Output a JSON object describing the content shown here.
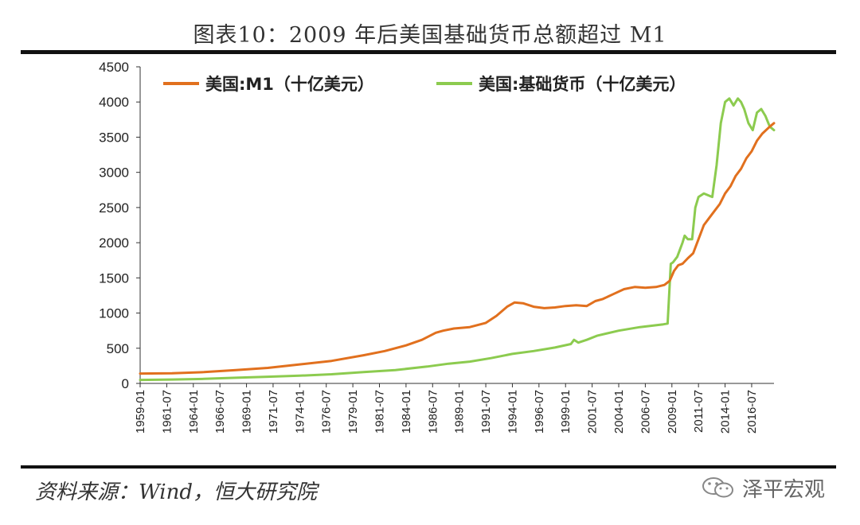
{
  "title": "图表10：2009 年后美国基础货币总额超过 M1",
  "source": "资料来源：Wind，恒大研究院",
  "watermark": {
    "text": "泽平宏观",
    "icon": "wechat-icon"
  },
  "colors": {
    "m1": "#E1701E",
    "base": "#8CCB4F",
    "axis": "#333333"
  },
  "chart_data": {
    "type": "line",
    "title": "图表10：2009 年后美国基础货币总额超过 M1",
    "xlabel": "",
    "ylabel": "",
    "ylim": [
      0,
      4500
    ],
    "xlim": [
      1959.0,
      2018.6
    ],
    "yticks": [
      0,
      500,
      1000,
      1500,
      2000,
      2500,
      3000,
      3500,
      4000,
      4500
    ],
    "xticks": [
      {
        "label": "1959-01",
        "x": 1959.0
      },
      {
        "label": "1961-07",
        "x": 1961.5
      },
      {
        "label": "1964-01",
        "x": 1964.0
      },
      {
        "label": "1966-07",
        "x": 1966.5
      },
      {
        "label": "1969-01",
        "x": 1969.0
      },
      {
        "label": "1971-07",
        "x": 1971.5
      },
      {
        "label": "1974-01",
        "x": 1974.0
      },
      {
        "label": "1976-07",
        "x": 1976.5
      },
      {
        "label": "1979-01",
        "x": 1979.0
      },
      {
        "label": "1981-07",
        "x": 1981.5
      },
      {
        "label": "1984-01",
        "x": 1984.0
      },
      {
        "label": "1986-07",
        "x": 1986.5
      },
      {
        "label": "1989-01",
        "x": 1989.0
      },
      {
        "label": "1991-07",
        "x": 1991.5
      },
      {
        "label": "1994-01",
        "x": 1994.0
      },
      {
        "label": "1996-07",
        "x": 1996.5
      },
      {
        "label": "1999-01",
        "x": 1999.0
      },
      {
        "label": "2001-07",
        "x": 2001.5
      },
      {
        "label": "2004-01",
        "x": 2004.0
      },
      {
        "label": "2006-07",
        "x": 2006.5
      },
      {
        "label": "2009-01",
        "x": 2009.0
      },
      {
        "label": "2011-07",
        "x": 2011.5
      },
      {
        "label": "2014-01",
        "x": 2014.0
      },
      {
        "label": "2016-07",
        "x": 2016.5
      }
    ],
    "legend_position": "top",
    "series": [
      {
        "name": "美国:M1（十亿美元）",
        "color": "#E1701E",
        "x": [
          1959,
          1962,
          1965,
          1968,
          1971,
          1974,
          1977,
          1980,
          1982,
          1984,
          1985.5,
          1986.8,
          1987.5,
          1988.5,
          1990,
          1991.5,
          1992.5,
          1993.5,
          1994.2,
          1995,
          1996,
          1997,
          1998,
          1999,
          2000,
          2001,
          2001.8,
          2002.5,
          2003.5,
          2004.5,
          2005.5,
          2006.5,
          2007.5,
          2008.3,
          2008.8,
          2009.2,
          2009.6,
          2010,
          2010.5,
          2011,
          2011.5,
          2012,
          2012.5,
          2013,
          2013.5,
          2014,
          2014.5,
          2015,
          2015.5,
          2016,
          2016.5,
          2017,
          2017.5,
          2018.2,
          2018.6
        ],
        "values": [
          140,
          145,
          160,
          190,
          220,
          270,
          320,
          400,
          460,
          540,
          620,
          720,
          750,
          780,
          800,
          860,
          960,
          1090,
          1150,
          1140,
          1090,
          1070,
          1080,
          1100,
          1110,
          1100,
          1170,
          1200,
          1270,
          1340,
          1370,
          1360,
          1370,
          1400,
          1460,
          1600,
          1680,
          1700,
          1780,
          1850,
          2050,
          2250,
          2350,
          2450,
          2550,
          2700,
          2800,
          2950,
          3050,
          3200,
          3300,
          3450,
          3550,
          3650,
          3700
        ]
      },
      {
        "name": "美国:基础货币（十亿美元）",
        "color": "#8CCB4F",
        "x": [
          1959,
          1962,
          1965,
          1968,
          1971,
          1974,
          1977,
          1980,
          1983,
          1986,
          1988,
          1990,
          1992,
          1994,
          1996,
          1998,
          1999.5,
          1999.8,
          2000.2,
          2001,
          2002,
          2004,
          2006,
          2008.2,
          2008.6,
          2008.9,
          2009.1,
          2009.5,
          2010,
          2010.2,
          2010.5,
          2010.9,
          2011.2,
          2011.5,
          2012,
          2012.8,
          2013.2,
          2013.6,
          2014,
          2014.4,
          2014.8,
          2015.2,
          2015.5,
          2015.8,
          2016.2,
          2016.6,
          2017,
          2017.4,
          2017.8,
          2018.2,
          2018.6
        ],
        "values": [
          50,
          55,
          65,
          80,
          95,
          110,
          130,
          160,
          190,
          240,
          280,
          310,
          360,
          420,
          460,
          510,
          560,
          620,
          580,
          620,
          680,
          750,
          800,
          840,
          850,
          1700,
          1720,
          1800,
          2000,
          2100,
          2050,
          2050,
          2500,
          2650,
          2700,
          2650,
          3100,
          3700,
          4000,
          4050,
          3950,
          4050,
          4000,
          3900,
          3700,
          3600,
          3850,
          3900,
          3800,
          3650,
          3600
        ]
      }
    ]
  }
}
